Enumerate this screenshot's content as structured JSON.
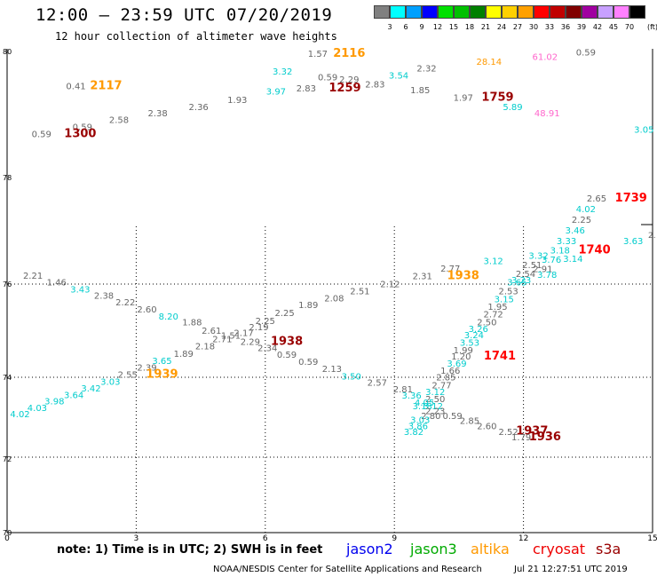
{
  "header": {
    "title": "12:00 – 23:59 UTC 07/20/2019",
    "subtitle": "12 hour collection of altimeter wave heights"
  },
  "colorbar": {
    "unit": "(ft)",
    "bins": [
      {
        "label": "3",
        "color": "#808080"
      },
      {
        "label": "6",
        "color": "#00ffff"
      },
      {
        "label": "9",
        "color": "#00a0ff"
      },
      {
        "label": "12",
        "color": "#0000ff"
      },
      {
        "label": "15",
        "color": "#00e000"
      },
      {
        "label": "18",
        "color": "#00c000"
      },
      {
        "label": "21",
        "color": "#008000"
      },
      {
        "label": "24",
        "color": "#ffff00"
      },
      {
        "label": "27",
        "color": "#ffd000"
      },
      {
        "label": "30",
        "color": "#ffa000"
      },
      {
        "label": "33",
        "color": "#ff0000"
      },
      {
        "label": "36",
        "color": "#c00000"
      },
      {
        "label": "39",
        "color": "#800000"
      },
      {
        "label": "42",
        "color": "#a000a0"
      },
      {
        "label": "45",
        "color": "#c8a0ff"
      },
      {
        "label": "70",
        "color": "#ff80ff"
      },
      {
        "label": "",
        "color": "#000000"
      }
    ]
  },
  "axes": {
    "x_ticks": [
      {
        "label": "0",
        "v": 0
      },
      {
        "label": "3",
        "v": 3
      },
      {
        "label": "6",
        "v": 6
      },
      {
        "label": "9",
        "v": 9
      },
      {
        "label": "12",
        "v": 12
      },
      {
        "label": "15",
        "v": 15
      }
    ],
    "y_ticks": [
      {
        "label": "70",
        "v": 70
      },
      {
        "label": "72",
        "v": 72
      },
      {
        "label": "74",
        "v": 74
      },
      {
        "label": "76",
        "v": 76
      },
      {
        "label": "78",
        "v": 78
      },
      {
        "label": "80",
        "v": 80
      }
    ],
    "xlim": [
      0,
      15
    ],
    "ylim": [
      70,
      80
    ],
    "dotted_grid_x": [
      3,
      6,
      9,
      12
    ],
    "dotted_grid_y": [
      72,
      74,
      76,
      78
    ]
  },
  "labels": [
    {
      "t": "1.57",
      "x": 7.22,
      "y": 79.75,
      "c": "#666666"
    },
    {
      "t": "2116",
      "x": 7.95,
      "y": 79.75,
      "c": "#ff9900",
      "bold": true
    },
    {
      "t": "0.59",
      "x": 13.45,
      "y": 79.8,
      "c": "#666666"
    },
    {
      "t": "61.02",
      "x": 12.5,
      "y": 79.65,
      "c": "#ff66cc"
    },
    {
      "t": "28.14",
      "x": 11.2,
      "y": 79.5,
      "c": "#ff9900"
    },
    {
      "t": "3.32",
      "x": 6.4,
      "y": 79.2,
      "c": "#00cccc"
    },
    {
      "t": "0.59",
      "x": 7.45,
      "y": 79.02,
      "c": "#666666"
    },
    {
      "t": "2.29",
      "x": 7.95,
      "y": 78.95,
      "c": "#666666"
    },
    {
      "t": "3.54",
      "x": 9.1,
      "y": 79.07,
      "c": "#00cccc"
    },
    {
      "t": "2.32",
      "x": 9.75,
      "y": 79.3,
      "c": "#666666"
    },
    {
      "t": "0.41",
      "x": 1.6,
      "y": 78.75,
      "c": "#666666"
    },
    {
      "t": "2117",
      "x": 2.3,
      "y": 78.75,
      "c": "#ff9900",
      "bold": true
    },
    {
      "t": "2.83",
      "x": 6.95,
      "y": 78.68,
      "c": "#666666"
    },
    {
      "t": "1259",
      "x": 7.85,
      "y": 78.68,
      "c": "#990000",
      "bold": true
    },
    {
      "t": "2.83",
      "x": 8.55,
      "y": 78.8,
      "c": "#666666"
    },
    {
      "t": "1.85",
      "x": 9.6,
      "y": 78.62,
      "c": "#666666"
    },
    {
      "t": "3.97",
      "x": 6.25,
      "y": 78.58,
      "c": "#00cccc"
    },
    {
      "t": "1.97",
      "x": 10.6,
      "y": 78.38,
      "c": "#666666"
    },
    {
      "t": "1759",
      "x": 11.4,
      "y": 78.38,
      "c": "#990000",
      "bold": true
    },
    {
      "t": "1.93",
      "x": 5.35,
      "y": 78.32,
      "c": "#666666"
    },
    {
      "t": "2.36",
      "x": 4.45,
      "y": 78.1,
      "c": "#666666"
    },
    {
      "t": "5.89",
      "x": 11.75,
      "y": 78.1,
      "c": "#00cccc"
    },
    {
      "t": "48.91",
      "x": 12.55,
      "y": 77.9,
      "c": "#ff66cc"
    },
    {
      "t": "2.38",
      "x": 3.5,
      "y": 77.9,
      "c": "#666666"
    },
    {
      "t": "2.58",
      "x": 2.6,
      "y": 77.7,
      "c": "#666666"
    },
    {
      "t": "0.59",
      "x": 1.75,
      "y": 77.48,
      "c": "#666666"
    },
    {
      "t": "0.59",
      "x": 0.8,
      "y": 77.25,
      "c": "#666666"
    },
    {
      "t": "1300",
      "x": 1.7,
      "y": 77.25,
      "c": "#990000",
      "bold": true
    },
    {
      "t": "3.05",
      "x": 14.8,
      "y": 77.4,
      "c": "#00cccc"
    }
  ],
  "map_labels": [
    {
      "t": "2.65",
      "x": 13.7,
      "y": 71.95,
      "c": "#666666"
    },
    {
      "t": "1739",
      "x": 14.5,
      "y": 71.95,
      "c": "#ff0000",
      "bold": true
    },
    {
      "t": "4.02",
      "x": 13.45,
      "y": 71.7,
      "c": "#00cccc"
    },
    {
      "t": "2.25",
      "x": 13.35,
      "y": 71.45,
      "c": "#666666"
    },
    {
      "t": "3.46",
      "x": 13.2,
      "y": 71.2,
      "c": "#00cccc"
    },
    {
      "t": "3.33",
      "x": 13.0,
      "y": 70.95,
      "c": "#00cccc"
    },
    {
      "t": "3.63",
      "x": 14.55,
      "y": 70.95,
      "c": "#00cccc"
    },
    {
      "t": "3.18",
      "x": 12.85,
      "y": 70.72,
      "c": "#00cccc"
    },
    {
      "t": "1740",
      "x": 13.65,
      "y": 70.72,
      "c": "#ff0000",
      "bold": true
    },
    {
      "t": "3.14",
      "x": 13.15,
      "y": 70.52,
      "c": "#00cccc"
    },
    {
      "t": "3.76",
      "x": 12.65,
      "y": 70.5,
      "c": "#00cccc"
    },
    {
      "t": "2.91",
      "x": 12.45,
      "y": 70.28,
      "c": "#666666"
    },
    {
      "t": "3.78",
      "x": 12.55,
      "y": 70.15,
      "c": "#00cccc"
    },
    {
      "t": "3.23",
      "x": 11.95,
      "y": 70.02,
      "c": "#00cccc"
    }
  ],
  "panel_labels": [
    {
      "t": "3.32",
      "x": 12.35,
      "y": 77.87,
      "c": "#00cccc"
    },
    {
      "t": "3.12",
      "x": 11.3,
      "y": 77.72,
      "c": "#00cccc"
    },
    {
      "t": "2.77",
      "x": 10.3,
      "y": 77.5,
      "c": "#666666"
    },
    {
      "t": "2.51",
      "x": 12.2,
      "y": 77.6,
      "c": "#666666"
    },
    {
      "t": "2.21",
      "x": 0.6,
      "y": 77.3,
      "c": "#666666"
    },
    {
      "t": "2.54",
      "x": 12.05,
      "y": 77.35,
      "c": "#666666"
    },
    {
      "t": "2.31",
      "x": 9.65,
      "y": 77.28,
      "c": "#666666"
    },
    {
      "t": "1938",
      "x": 10.6,
      "y": 77.28,
      "c": "#ff9900",
      "bold": true
    },
    {
      "t": "3.65",
      "x": 11.85,
      "y": 77.1,
      "c": "#00cccc"
    },
    {
      "t": "1.46",
      "x": 1.15,
      "y": 77.1,
      "c": "#666666"
    },
    {
      "t": "2.12",
      "x": 8.9,
      "y": 77.05,
      "c": "#666666"
    },
    {
      "t": "3.43",
      "x": 1.7,
      "y": 76.9,
      "c": "#00cccc"
    },
    {
      "t": "2.53",
      "x": 11.65,
      "y": 76.85,
      "c": "#666666"
    },
    {
      "t": "2.51",
      "x": 8.2,
      "y": 76.85,
      "c": "#666666"
    },
    {
      "t": "2.38",
      "x": 2.25,
      "y": 76.72,
      "c": "#666666"
    },
    {
      "t": "3.15",
      "x": 11.55,
      "y": 76.62,
      "c": "#00cccc"
    },
    {
      "t": "2.08",
      "x": 7.6,
      "y": 76.65,
      "c": "#666666"
    },
    {
      "t": "2.22",
      "x": 2.75,
      "y": 76.53,
      "c": "#666666"
    },
    {
      "t": "1.95",
      "x": 11.4,
      "y": 76.4,
      "c": "#666666"
    },
    {
      "t": "1.89",
      "x": 7.0,
      "y": 76.45,
      "c": "#666666"
    },
    {
      "t": "2.60",
      "x": 3.25,
      "y": 76.32,
      "c": "#666666"
    },
    {
      "t": "2.72",
      "x": 11.3,
      "y": 76.18,
      "c": "#666666"
    },
    {
      "t": "2.25",
      "x": 6.45,
      "y": 76.22,
      "c": "#666666"
    },
    {
      "t": "8.20",
      "x": 3.75,
      "y": 76.12,
      "c": "#00cccc"
    },
    {
      "t": "2.50",
      "x": 11.15,
      "y": 75.95,
      "c": "#666666"
    },
    {
      "t": "2.25",
      "x": 6.0,
      "y": 76.0,
      "c": "#666666"
    },
    {
      "t": "1.88",
      "x": 4.3,
      "y": 75.95,
      "c": "#666666"
    },
    {
      "t": "2.19",
      "x": 5.85,
      "y": 75.82,
      "c": "#666666"
    },
    {
      "t": "3.26",
      "x": 10.95,
      "y": 75.77,
      "c": "#00cccc"
    },
    {
      "t": "2.61",
      "x": 4.75,
      "y": 75.72,
      "c": "#666666"
    },
    {
      "t": "2.17",
      "x": 5.5,
      "y": 75.65,
      "c": "#666666"
    },
    {
      "t": "3.24",
      "x": 10.85,
      "y": 75.58,
      "c": "#00cccc"
    },
    {
      "t": "1.51",
      "x": 5.2,
      "y": 75.57,
      "c": "#666666"
    },
    {
      "t": "2.71",
      "x": 5.0,
      "y": 75.47,
      "c": "#666666"
    },
    {
      "t": "3.53",
      "x": 10.75,
      "y": 75.37,
      "c": "#00cccc"
    },
    {
      "t": "2.29",
      "x": 5.65,
      "y": 75.4,
      "c": "#666666"
    },
    {
      "t": "1938",
      "x": 6.5,
      "y": 75.4,
      "c": "#990000",
      "bold": true
    },
    {
      "t": "2.18",
      "x": 4.6,
      "y": 75.27,
      "c": "#666666"
    },
    {
      "t": "2.34",
      "x": 6.05,
      "y": 75.22,
      "c": "#666666"
    },
    {
      "t": "1.99",
      "x": 10.6,
      "y": 75.15,
      "c": "#666666"
    },
    {
      "t": "1.20",
      "x": 10.55,
      "y": 74.97,
      "c": "#666666"
    },
    {
      "t": "1741",
      "x": 11.45,
      "y": 74.97,
      "c": "#ff0000",
      "bold": true
    },
    {
      "t": "1.89",
      "x": 4.1,
      "y": 75.05,
      "c": "#666666"
    },
    {
      "t": "0.59",
      "x": 6.5,
      "y": 75.02,
      "c": "#666666"
    },
    {
      "t": "3.65",
      "x": 3.6,
      "y": 74.85,
      "c": "#00cccc"
    },
    {
      "t": "3.69",
      "x": 10.45,
      "y": 74.77,
      "c": "#00cccc"
    },
    {
      "t": "0.59",
      "x": 7.0,
      "y": 74.82,
      "c": "#666666"
    },
    {
      "t": "2.39",
      "x": 3.25,
      "y": 74.65,
      "c": "#666666"
    },
    {
      "t": "1.66",
      "x": 10.3,
      "y": 74.57,
      "c": "#666666"
    },
    {
      "t": "2.13",
      "x": 7.55,
      "y": 74.62,
      "c": "#666666"
    },
    {
      "t": "2.55",
      "x": 2.8,
      "y": 74.45,
      "c": "#666666"
    },
    {
      "t": "1939",
      "x": 3.6,
      "y": 74.45,
      "c": "#ff9900",
      "bold": true
    },
    {
      "t": "3.50",
      "x": 8.0,
      "y": 74.4,
      "c": "#00cccc"
    },
    {
      "t": "2.85",
      "x": 10.2,
      "y": 74.37,
      "c": "#666666"
    },
    {
      "t": "3.03",
      "x": 2.4,
      "y": 74.25,
      "c": "#00cccc"
    },
    {
      "t": "2.57",
      "x": 8.6,
      "y": 74.22,
      "c": "#666666"
    },
    {
      "t": "2.77",
      "x": 10.1,
      "y": 74.15,
      "c": "#666666"
    },
    {
      "t": "3.42",
      "x": 1.95,
      "y": 74.05,
      "c": "#00cccc"
    },
    {
      "t": "2.81",
      "x": 9.2,
      "y": 74.03,
      "c": "#666666"
    },
    {
      "t": "3.12",
      "x": 9.95,
      "y": 73.95,
      "c": "#00cccc"
    },
    {
      "t": "3.64",
      "x": 1.55,
      "y": 73.87,
      "c": "#00cccc"
    },
    {
      "t": "3.36",
      "x": 9.4,
      "y": 73.85,
      "c": "#00cccc"
    },
    {
      "t": "2.50",
      "x": 9.95,
      "y": 73.75,
      "c": "#666666"
    },
    {
      "t": "3.98",
      "x": 1.1,
      "y": 73.68,
      "c": "#00cccc"
    },
    {
      "t": "4.05",
      "x": 9.7,
      "y": 73.65,
      "c": "#00cccc"
    },
    {
      "t": "3.12",
      "x": 9.9,
      "y": 73.55,
      "c": "#00cccc"
    },
    {
      "t": "3.18",
      "x": 9.65,
      "y": 73.55,
      "c": "#00cccc"
    },
    {
      "t": "4.03",
      "x": 0.7,
      "y": 73.5,
      "c": "#00cccc"
    },
    {
      "t": "2.23",
      "x": 9.95,
      "y": 73.4,
      "c": "#666666"
    },
    {
      "t": "4.02",
      "x": 0.3,
      "y": 73.32,
      "c": "#00cccc"
    },
    {
      "t": "2.80",
      "x": 9.85,
      "y": 73.27,
      "c": "#666666"
    },
    {
      "t": "0.59",
      "x": 10.35,
      "y": 73.27,
      "c": "#666666"
    },
    {
      "t": "3.03",
      "x": 9.6,
      "y": 73.15,
      "c": "#00cccc"
    },
    {
      "t": "2.85",
      "x": 10.75,
      "y": 73.12,
      "c": "#666666"
    },
    {
      "t": "3.86",
      "x": 9.55,
      "y": 72.97,
      "c": "#00cccc"
    },
    {
      "t": "2.60",
      "x": 11.15,
      "y": 72.97,
      "c": "#666666"
    },
    {
      "t": "3.82",
      "x": 9.45,
      "y": 72.8,
      "c": "#00cccc"
    },
    {
      "t": "2.52",
      "x": 11.65,
      "y": 72.8,
      "c": "#666666"
    },
    {
      "t": "1937",
      "x": 12.2,
      "y": 72.82,
      "c": "#990000",
      "bold": true
    },
    {
      "t": "1.79",
      "x": 11.95,
      "y": 72.65,
      "c": "#666666"
    },
    {
      "t": "1936",
      "x": 12.5,
      "y": 72.65,
      "c": "#990000",
      "bold": true
    }
  ],
  "extra": {
    "right_edge_glyph": "2.",
    "panel_mid_y_label": "76"
  },
  "note": "note:  1) Time is in UTC;  2) SWH is in feet",
  "legend": [
    {
      "name": "jason2",
      "color": "#0000ee"
    },
    {
      "name": "jason3",
      "color": "#00aa00"
    },
    {
      "name": "altika",
      "color": "#ff9900"
    },
    {
      "name": "cryosat",
      "color": "#ee0000"
    },
    {
      "name": "s3a",
      "color": "#990000"
    }
  ],
  "footer": {
    "credit": "NOAA/NESDIS Center for Satellite Applications and Research",
    "timestamp": "Jul 21 12:27:51 UTC 2019"
  }
}
